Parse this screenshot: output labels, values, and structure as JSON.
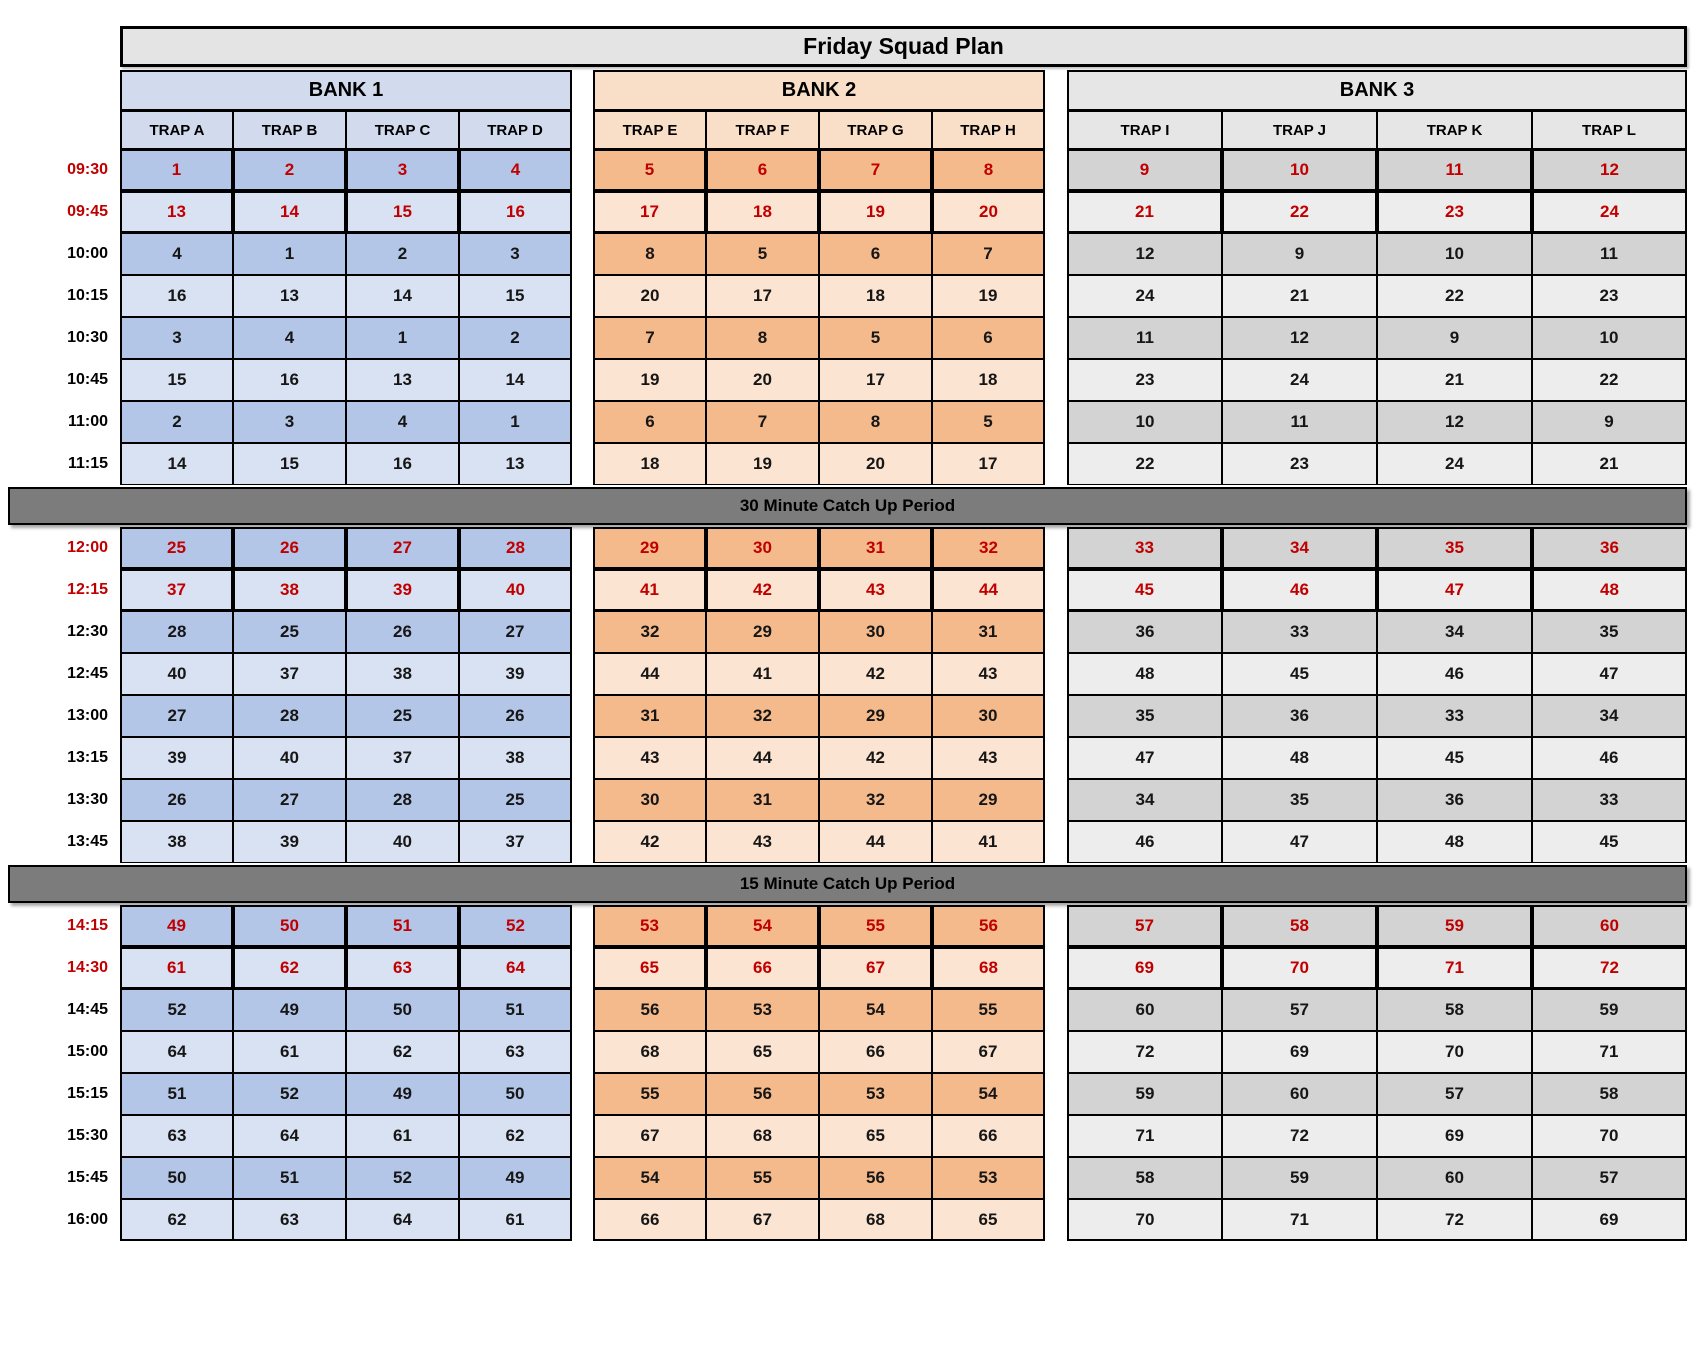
{
  "title": "Friday Squad Plan",
  "colors": {
    "title_bg": "#E4E4E4",
    "break_bg": "#7C7C7C",
    "highlight_text": "#C00000",
    "bank1_header": "#D2DBED",
    "bank1_dark": "#B4C6E7",
    "bank1_light": "#D9E2F3",
    "bank2_header": "#F9DEC8",
    "bank2_dark": "#F4BA8C",
    "bank2_light": "#FBE4D1",
    "bank3_header": "#E7E6E6",
    "bank3_dark": "#D3D3D3",
    "bank3_light": "#EDEDED"
  },
  "banks": [
    {
      "name": "BANK 1",
      "traps": [
        "TRAP A",
        "TRAP B",
        "TRAP C",
        "TRAP D"
      ],
      "header_bg": "#D2DBED",
      "row_dark": "#B4C6E7",
      "row_light": "#D9E2F3"
    },
    {
      "name": "BANK 2",
      "traps": [
        "TRAP E",
        "TRAP F",
        "TRAP G",
        "TRAP H"
      ],
      "header_bg": "#F9DEC8",
      "row_dark": "#F4BA8C",
      "row_light": "#FBE4D1"
    },
    {
      "name": "BANK 3",
      "traps": [
        "TRAP I",
        "TRAP J",
        "TRAP K",
        "TRAP L"
      ],
      "header_bg": "#E7E6E6",
      "row_dark": "#D3D3D3",
      "row_light": "#EDEDED"
    }
  ],
  "schedule": [
    {
      "type": "row",
      "time": "09:30",
      "highlight": true,
      "bank1": [
        1,
        2,
        3,
        4
      ],
      "bank2": [
        5,
        6,
        7,
        8
      ],
      "bank3": [
        9,
        10,
        11,
        12
      ]
    },
    {
      "type": "row",
      "time": "09:45",
      "highlight": true,
      "bank1": [
        13,
        14,
        15,
        16
      ],
      "bank2": [
        17,
        18,
        19,
        20
      ],
      "bank3": [
        21,
        22,
        23,
        24
      ]
    },
    {
      "type": "row",
      "time": "10:00",
      "highlight": false,
      "bank1": [
        4,
        1,
        2,
        3
      ],
      "bank2": [
        8,
        5,
        6,
        7
      ],
      "bank3": [
        12,
        9,
        10,
        11
      ]
    },
    {
      "type": "row",
      "time": "10:15",
      "highlight": false,
      "bank1": [
        16,
        13,
        14,
        15
      ],
      "bank2": [
        20,
        17,
        18,
        19
      ],
      "bank3": [
        24,
        21,
        22,
        23
      ]
    },
    {
      "type": "row",
      "time": "10:30",
      "highlight": false,
      "bank1": [
        3,
        4,
        1,
        2
      ],
      "bank2": [
        7,
        8,
        5,
        6
      ],
      "bank3": [
        11,
        12,
        9,
        10
      ]
    },
    {
      "type": "row",
      "time": "10:45",
      "highlight": false,
      "bank1": [
        15,
        16,
        13,
        14
      ],
      "bank2": [
        19,
        20,
        17,
        18
      ],
      "bank3": [
        23,
        24,
        21,
        22
      ]
    },
    {
      "type": "row",
      "time": "11:00",
      "highlight": false,
      "bank1": [
        2,
        3,
        4,
        1
      ],
      "bank2": [
        6,
        7,
        8,
        5
      ],
      "bank3": [
        10,
        11,
        12,
        9
      ]
    },
    {
      "type": "row",
      "time": "11:15",
      "highlight": false,
      "bank1": [
        14,
        15,
        16,
        13
      ],
      "bank2": [
        18,
        19,
        20,
        17
      ],
      "bank3": [
        22,
        23,
        24,
        21
      ]
    },
    {
      "type": "break",
      "label": "30 Minute Catch Up Period"
    },
    {
      "type": "row",
      "time": "12:00",
      "highlight": true,
      "bank1": [
        25,
        26,
        27,
        28
      ],
      "bank2": [
        29,
        30,
        31,
        32
      ],
      "bank3": [
        33,
        34,
        35,
        36
      ]
    },
    {
      "type": "row",
      "time": "12:15",
      "highlight": true,
      "bank1": [
        37,
        38,
        39,
        40
      ],
      "bank2": [
        41,
        42,
        43,
        44
      ],
      "bank3": [
        45,
        46,
        47,
        48
      ]
    },
    {
      "type": "row",
      "time": "12:30",
      "highlight": false,
      "bank1": [
        28,
        25,
        26,
        27
      ],
      "bank2": [
        32,
        29,
        30,
        31
      ],
      "bank3": [
        36,
        33,
        34,
        35
      ]
    },
    {
      "type": "row",
      "time": "12:45",
      "highlight": false,
      "bank1": [
        40,
        37,
        38,
        39
      ],
      "bank2": [
        44,
        41,
        42,
        43
      ],
      "bank3": [
        48,
        45,
        46,
        47
      ]
    },
    {
      "type": "row",
      "time": "13:00",
      "highlight": false,
      "bank1": [
        27,
        28,
        25,
        26
      ],
      "bank2": [
        31,
        32,
        29,
        30
      ],
      "bank3": [
        35,
        36,
        33,
        34
      ]
    },
    {
      "type": "row",
      "time": "13:15",
      "highlight": false,
      "bank1": [
        39,
        40,
        37,
        38
      ],
      "bank2": [
        43,
        44,
        42,
        43
      ],
      "bank3": [
        47,
        48,
        45,
        46
      ]
    },
    {
      "type": "row",
      "time": "13:30",
      "highlight": false,
      "bank1": [
        26,
        27,
        28,
        25
      ],
      "bank2": [
        30,
        31,
        32,
        29
      ],
      "bank3": [
        34,
        35,
        36,
        33
      ]
    },
    {
      "type": "row",
      "time": "13:45",
      "highlight": false,
      "bank1": [
        38,
        39,
        40,
        37
      ],
      "bank2": [
        42,
        43,
        44,
        41
      ],
      "bank3": [
        46,
        47,
        48,
        45
      ]
    },
    {
      "type": "break",
      "label": "15 Minute Catch Up Period"
    },
    {
      "type": "row",
      "time": "14:15",
      "highlight": true,
      "bank1": [
        49,
        50,
        51,
        52
      ],
      "bank2": [
        53,
        54,
        55,
        56
      ],
      "bank3": [
        57,
        58,
        59,
        60
      ]
    },
    {
      "type": "row",
      "time": "14:30",
      "highlight": true,
      "bank1": [
        61,
        62,
        63,
        64
      ],
      "bank2": [
        65,
        66,
        67,
        68
      ],
      "bank3": [
        69,
        70,
        71,
        72
      ]
    },
    {
      "type": "row",
      "time": "14:45",
      "highlight": false,
      "bank1": [
        52,
        49,
        50,
        51
      ],
      "bank2": [
        56,
        53,
        54,
        55
      ],
      "bank3": [
        60,
        57,
        58,
        59
      ]
    },
    {
      "type": "row",
      "time": "15:00",
      "highlight": false,
      "bank1": [
        64,
        61,
        62,
        63
      ],
      "bank2": [
        68,
        65,
        66,
        67
      ],
      "bank3": [
        72,
        69,
        70,
        71
      ]
    },
    {
      "type": "row",
      "time": "15:15",
      "highlight": false,
      "bank1": [
        51,
        52,
        49,
        50
      ],
      "bank2": [
        55,
        56,
        53,
        54
      ],
      "bank3": [
        59,
        60,
        57,
        58
      ]
    },
    {
      "type": "row",
      "time": "15:30",
      "highlight": false,
      "bank1": [
        63,
        64,
        61,
        62
      ],
      "bank2": [
        67,
        68,
        65,
        66
      ],
      "bank3": [
        71,
        72,
        69,
        70
      ]
    },
    {
      "type": "row",
      "time": "15:45",
      "highlight": false,
      "bank1": [
        50,
        51,
        52,
        49
      ],
      "bank2": [
        54,
        55,
        56,
        53
      ],
      "bank3": [
        58,
        59,
        60,
        57
      ]
    },
    {
      "type": "row",
      "time": "16:00",
      "highlight": false,
      "bank1": [
        62,
        63,
        64,
        61
      ],
      "bank2": [
        66,
        67,
        68,
        65
      ],
      "bank3": [
        70,
        71,
        72,
        69
      ]
    }
  ]
}
